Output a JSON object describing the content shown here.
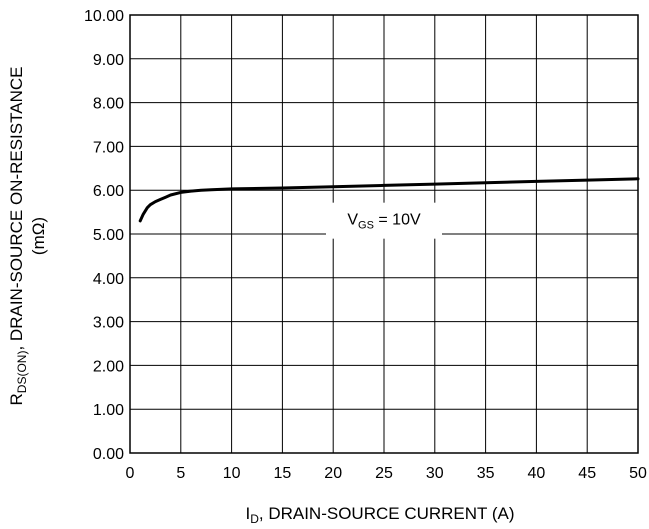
{
  "chart_data": {
    "type": "line",
    "xlabel_main": "I",
    "xlabel_sub": "D",
    "xlabel_rest": ", DRAIN-SOURCE CURRENT (A)",
    "ylabel_main": "R",
    "ylabel_sub": "DS(ON)",
    "ylabel_rest": ", DRAIN-SOURCE ON-RESISTANCE",
    "ylabel_unit": "(mΩ)",
    "xlim": [
      0,
      50
    ],
    "ylim": [
      0,
      10
    ],
    "x_ticks": [
      "0",
      "5",
      "10",
      "15",
      "20",
      "25",
      "30",
      "35",
      "40",
      "45",
      "50"
    ],
    "y_ticks": [
      "0.00",
      "1.00",
      "2.00",
      "3.00",
      "4.00",
      "5.00",
      "6.00",
      "7.00",
      "8.00",
      "9.00",
      "10.00"
    ],
    "grid": true,
    "series": [
      {
        "x": [
          1.0,
          1.3,
          1.7,
          2.0,
          2.5,
          3.0,
          3.5,
          4.0,
          5.0,
          6.0,
          7.0,
          8.0,
          10.0,
          15.0,
          20.0,
          25.0,
          30.0,
          35.0,
          40.0,
          45.0,
          50.0
        ],
        "y": [
          5.3,
          5.45,
          5.6,
          5.67,
          5.74,
          5.79,
          5.84,
          5.89,
          5.95,
          5.98,
          6.0,
          6.01,
          6.03,
          6.05,
          6.08,
          6.11,
          6.14,
          6.17,
          6.2,
          6.23,
          6.26
        ]
      }
    ],
    "annotation": {
      "main": "V",
      "sub": "GS",
      "rest": " = 10V",
      "x": 25,
      "y": 5.35
    }
  }
}
